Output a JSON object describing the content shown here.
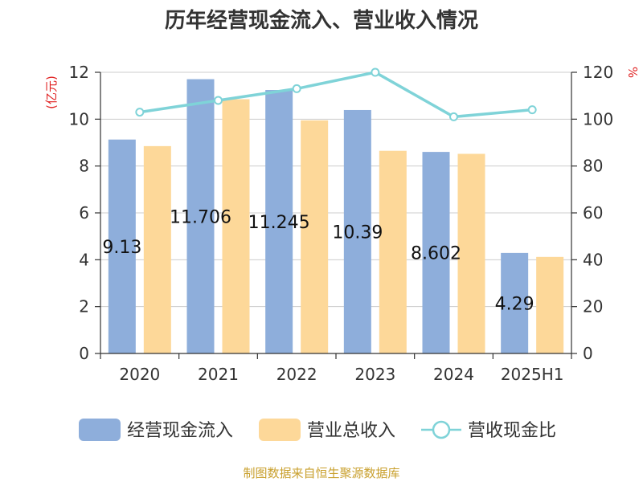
{
  "chart_data": {
    "type": "bar",
    "title": "历年经营现金流入、营业收入情况",
    "categories": [
      "2020",
      "2021",
      "2022",
      "2023",
      "2024",
      "2025H1"
    ],
    "series": [
      {
        "name": "经营现金流入",
        "type": "bar",
        "axis": "left",
        "color": "#8eaedb",
        "values": [
          9.13,
          11.706,
          11.245,
          10.39,
          8.602,
          4.29
        ],
        "labels": [
          "9.13",
          "11.706",
          "11.245",
          "10.39",
          "8.602",
          "4.29"
        ]
      },
      {
        "name": "营业总收入",
        "type": "bar",
        "axis": "left",
        "color": "#fdd899",
        "values": [
          8.85,
          10.85,
          9.95,
          8.65,
          8.52,
          4.12
        ]
      },
      {
        "name": "营收现金比",
        "type": "line",
        "axis": "right",
        "color": "#7fd3d8",
        "values": [
          103,
          108,
          113,
          120,
          101,
          104
        ]
      }
    ],
    "y_left": {
      "label": "(亿元)",
      "ylim": [
        0,
        12
      ],
      "ticks": [
        0,
        2,
        4,
        6,
        8,
        10,
        12
      ]
    },
    "y_right": {
      "label": "%",
      "ylim": [
        0,
        120
      ],
      "ticks": [
        0,
        20,
        40,
        60,
        80,
        100,
        120
      ]
    },
    "grid": true,
    "legend_position": "bottom"
  },
  "source_text": "制图数据来自恒生聚源数据库"
}
